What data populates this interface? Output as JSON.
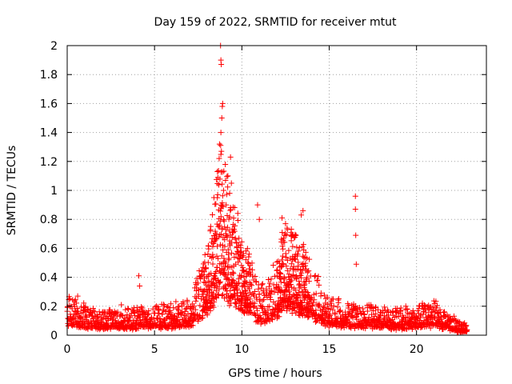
{
  "chart_data": {
    "type": "scatter",
    "title": "Day 159 of 2022, SRMTID for receiver mtut",
    "xlabel": "GPS time / hours",
    "ylabel": "SRMTID / TECUs",
    "xlim": [
      0,
      24
    ],
    "ylim": [
      0,
      2
    ],
    "xticks": [
      0,
      5,
      10,
      15,
      20
    ],
    "xtick_labels": [
      "0",
      "5",
      "10",
      "15",
      "20"
    ],
    "yticks": [
      0,
      0.2,
      0.4,
      0.6,
      0.8,
      1,
      1.2,
      1.4,
      1.6,
      1.8,
      2
    ],
    "ytick_labels": [
      "0",
      "0.2",
      "0.4",
      "0.6",
      "0.8",
      "1",
      "1.2",
      "1.4",
      "1.6",
      "1.8",
      "2"
    ],
    "grid": true,
    "marker": "+",
    "color": "#ff0000",
    "series": [
      {
        "name": "mtut",
        "envelope": [
          [
            0,
            0.15
          ],
          [
            0.5,
            0.14
          ],
          [
            1,
            0.12
          ],
          [
            2,
            0.1
          ],
          [
            3,
            0.1
          ],
          [
            4,
            0.11
          ],
          [
            5,
            0.12
          ],
          [
            6,
            0.12
          ],
          [
            7,
            0.15
          ],
          [
            7.5,
            0.25
          ],
          [
            8,
            0.35
          ],
          [
            8.5,
            0.55
          ],
          [
            8.8,
            0.75
          ],
          [
            9.2,
            0.6
          ],
          [
            9.6,
            0.5
          ],
          [
            10,
            0.42
          ],
          [
            10.5,
            0.3
          ],
          [
            11,
            0.2
          ],
          [
            11.5,
            0.22
          ],
          [
            12,
            0.3
          ],
          [
            12.5,
            0.45
          ],
          [
            13,
            0.4
          ],
          [
            13.5,
            0.35
          ],
          [
            14,
            0.28
          ],
          [
            14.5,
            0.2
          ],
          [
            15,
            0.15
          ],
          [
            16,
            0.13
          ],
          [
            17,
            0.12
          ],
          [
            18,
            0.11
          ],
          [
            19,
            0.1
          ],
          [
            20,
            0.12
          ],
          [
            21,
            0.14
          ],
          [
            22,
            0.08
          ],
          [
            22.5,
            0.05
          ],
          [
            22.9,
            0.05
          ]
        ],
        "peaks": [
          [
            8.78,
            2.0
          ],
          [
            8.8,
            1.9
          ],
          [
            8.82,
            1.87
          ],
          [
            8.9,
            1.6
          ],
          [
            8.88,
            1.58
          ],
          [
            8.85,
            1.5
          ],
          [
            8.8,
            1.4
          ],
          [
            8.72,
            1.32
          ],
          [
            8.83,
            1.27
          ],
          [
            8.7,
            1.22
          ],
          [
            8.6,
            1.13
          ],
          [
            9.35,
            1.23
          ],
          [
            9.2,
            1.1
          ],
          [
            9.4,
            1.05
          ],
          [
            9.3,
            0.98
          ],
          [
            8.4,
            0.95
          ],
          [
            8.95,
            1.0
          ],
          [
            9.1,
            0.9
          ],
          [
            16.5,
            0.96
          ],
          [
            16.5,
            0.87
          ],
          [
            16.52,
            0.69
          ],
          [
            16.55,
            0.49
          ],
          [
            10.9,
            0.9
          ],
          [
            11.0,
            0.8
          ],
          [
            12.3,
            0.81
          ],
          [
            12.5,
            0.77
          ],
          [
            13.5,
            0.86
          ],
          [
            13.4,
            0.83
          ],
          [
            4.1,
            0.41
          ],
          [
            4.15,
            0.34
          ],
          [
            3.1,
            0.21
          ],
          [
            0.6,
            0.27
          ]
        ]
      }
    ]
  }
}
